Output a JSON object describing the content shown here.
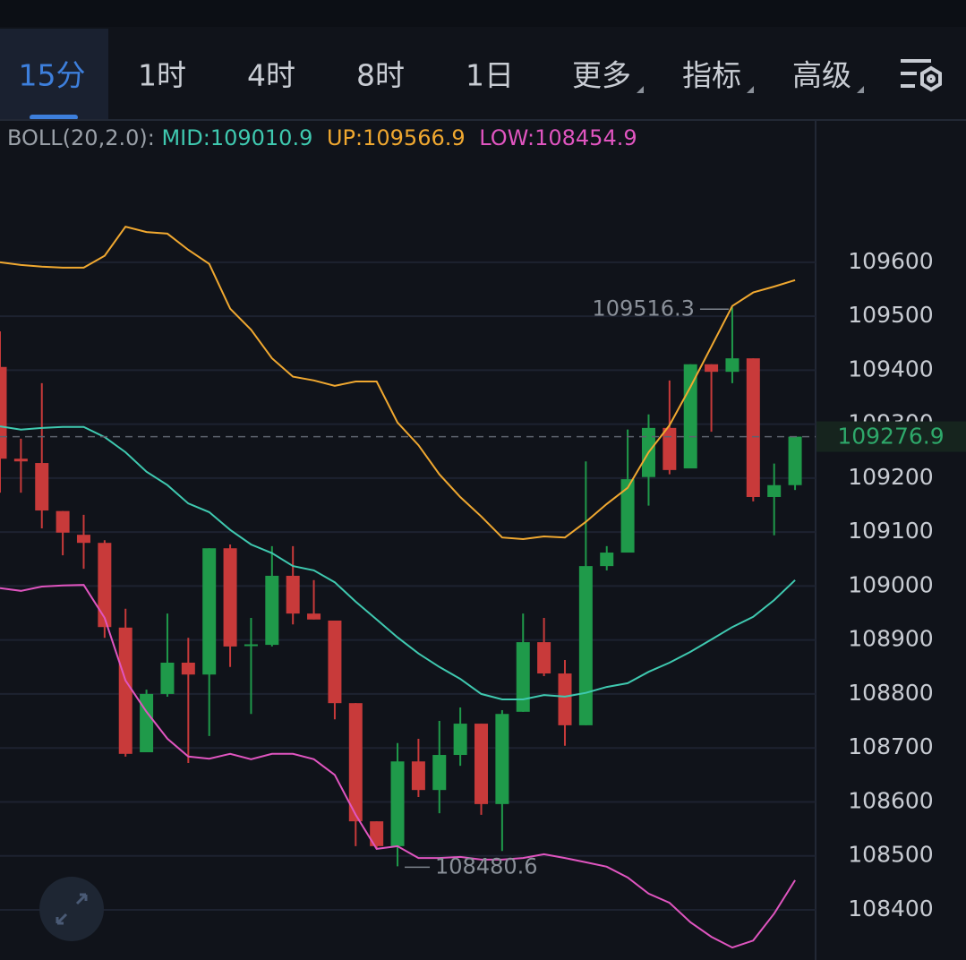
{
  "tabs": [
    "15分",
    "1时",
    "4时",
    "8时",
    "1日",
    "更多",
    "指标",
    "高级"
  ],
  "chart_data": {
    "type": "candlestick",
    "indicator": "BOLL(20,2.0):",
    "open": [
      109406,
      109236,
      109228,
      109139,
      109095,
      109080,
      108923,
      108692,
      108800,
      108858,
      108836,
      109070,
      108890,
      108891,
      109019,
      108949,
      108936,
      108783,
      108564,
      108518,
      108675,
      108622,
      108687,
      108745,
      108596,
      108767,
      108896,
      108838,
      108742,
      109037,
      109062,
      109202,
      109293,
      109218,
      109411,
      109397,
      109422,
      109165,
      109187
    ],
    "high": [
      109472,
      109273,
      109376,
      109139,
      109132,
      109085,
      108958,
      108808,
      108949,
      108904,
      109070,
      109077,
      108941,
      109074,
      109074,
      109011,
      108936,
      108783,
      108564,
      108709,
      108717,
      108750,
      108775,
      108745,
      108770,
      108949,
      108941,
      108863,
      109231,
      109074,
      109290,
      109318,
      109381,
      109411,
      109411,
      109516.3,
      109422,
      109227,
      109276.9
    ],
    "low": [
      109173,
      109173,
      109107,
      109057,
      109032,
      108904,
      108684,
      108692,
      108795,
      108672,
      108722,
      108850,
      108763,
      108888,
      108929,
      108938,
      108753,
      108518,
      108513,
      108480.6,
      108609,
      108579,
      108667,
      108576,
      108509,
      108767,
      108833,
      108704,
      108742,
      109029,
      109062,
      109149,
      109207,
      109218,
      109286,
      109376,
      109157,
      109094,
      109178
    ],
    "close": [
      109236,
      109231,
      109140,
      109099,
      109080,
      108924,
      108689,
      108800,
      108858,
      108836,
      109070,
      108888,
      108892,
      109019,
      108949,
      108938,
      108783,
      108564,
      108518,
      108675,
      108622,
      108687,
      108745,
      108596,
      108763,
      108896,
      108838,
      108742,
      109037,
      109062,
      109198,
      109293,
      109215,
      109411,
      109397,
      109422,
      109165,
      109187,
      109276.9
    ],
    "up_color": "#1f9a4a",
    "down_color": "#c83a3a",
    "series": [
      {
        "name": "MID:",
        "color": "#3fc9b0",
        "values": [
          109296,
          109290,
          109293,
          109295,
          109295,
          109276,
          109248,
          109212,
          109187,
          109153,
          109137,
          109104,
          109077,
          109061,
          109037,
          109029,
          109007,
          108971,
          108938,
          108905,
          108875,
          108850,
          108828,
          108800,
          108790,
          108790,
          108798,
          108795,
          108802,
          108813,
          108820,
          108841,
          108858,
          108878,
          108901,
          108924,
          108943,
          108974,
          109010.9
        ]
      },
      {
        "name": "UP:",
        "color": "#f0a830",
        "values": [
          109600,
          109595,
          109592,
          109590,
          109590,
          109612,
          109666,
          109656,
          109653,
          109623,
          109597,
          109514,
          109475,
          109422,
          109388,
          109381,
          109371,
          109379,
          109379,
          109303,
          109261,
          109207,
          109165,
          109129,
          109090,
          109087,
          109092,
          109090,
          109119,
          109152,
          109182,
          109248,
          109298,
          109369,
          109444,
          109519,
          109544,
          109555,
          109566.9
        ]
      },
      {
        "name": "LOW:",
        "color": "#e055c0",
        "values": [
          108996,
          108991,
          108999,
          109001,
          109002,
          108941,
          108825,
          108767,
          108717,
          108684,
          108680,
          108689,
          108679,
          108689,
          108689,
          108679,
          108650,
          108576,
          108513,
          108518,
          108496,
          108496,
          108498,
          108493,
          108493,
          108496,
          108503,
          108496,
          108488,
          108480,
          108460,
          108430,
          108413,
          108377,
          108350,
          108330,
          108343,
          108393,
          108454.9
        ]
      }
    ],
    "ylim": [
      108307,
      109862
    ],
    "yticks": [
      108400,
      108500,
      108600,
      108700,
      108800,
      108900,
      109000,
      109100,
      109200,
      109300,
      109400,
      109500,
      109600
    ],
    "grid": true
  }
}
